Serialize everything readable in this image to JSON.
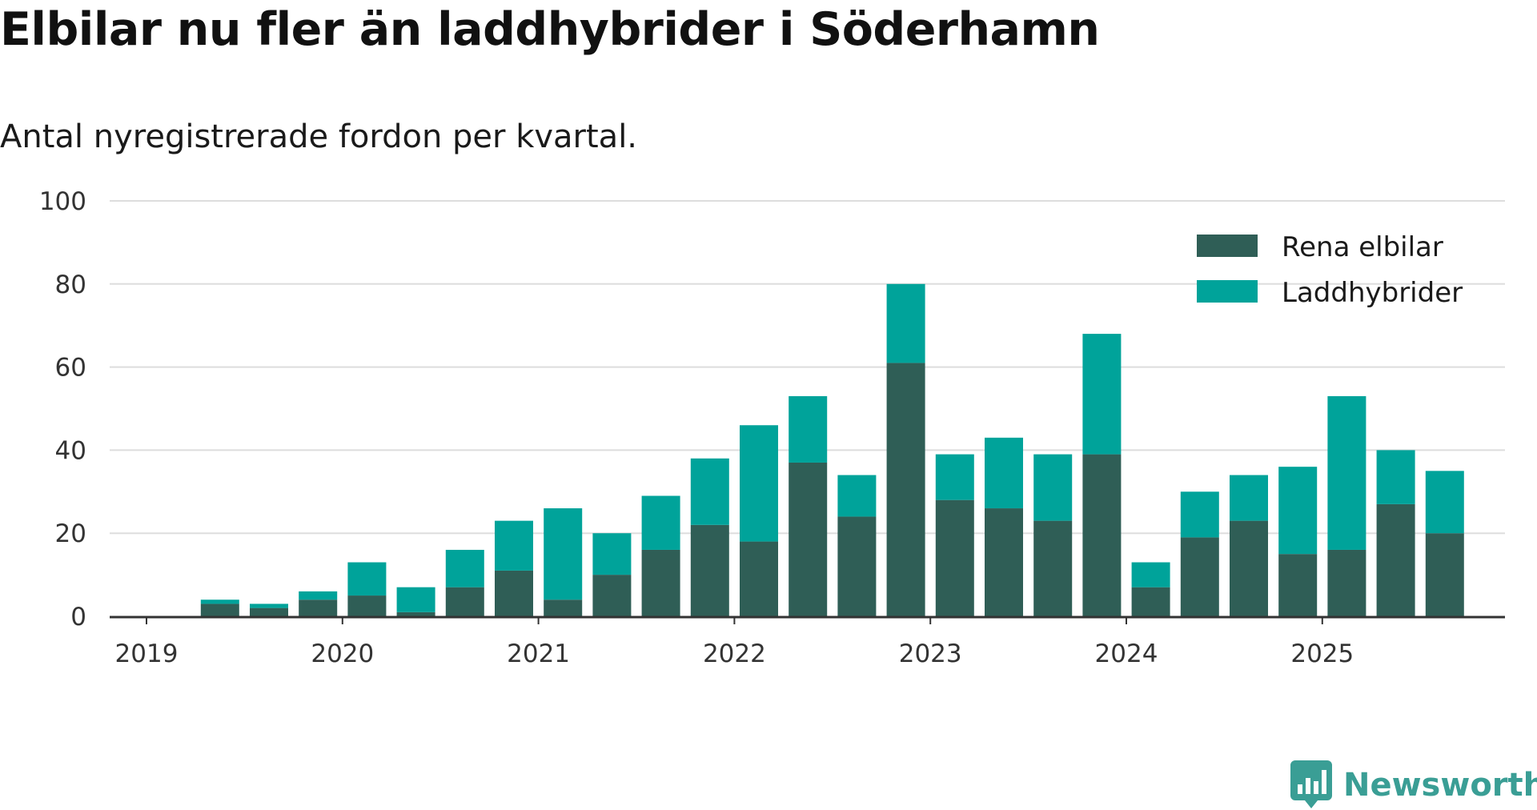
{
  "title": "Elbilar nu fler än laddhybrider i Söderhamn",
  "subtitle": "Antal nyregistrerade fordon per kvartal.",
  "brand": "Newsworthy",
  "colors": {
    "rena": "#2f5e56",
    "ladd": "#00a39a"
  },
  "chart_data": {
    "type": "bar",
    "stacked": true,
    "title": "Elbilar nu fler än laddhybrider i Söderhamn",
    "subtitle": "Antal nyregistrerade fordon per kvartal.",
    "xlabel": "",
    "ylabel": "",
    "ylim": [
      0,
      100
    ],
    "yticks": [
      0,
      20,
      40,
      60,
      80,
      100
    ],
    "xticks": [
      "2019",
      "2020",
      "2021",
      "2022",
      "2023",
      "2024",
      "2025"
    ],
    "grid": true,
    "legend_position": "top-right",
    "categories": [
      "2019 Q1",
      "2019 Q2",
      "2019 Q3",
      "2019 Q4",
      "2020 Q1",
      "2020 Q2",
      "2020 Q3",
      "2020 Q4",
      "2021 Q1",
      "2021 Q2",
      "2021 Q3",
      "2021 Q4",
      "2022 Q1",
      "2022 Q2",
      "2022 Q3",
      "2022 Q4",
      "2023 Q1",
      "2023 Q2",
      "2023 Q3",
      "2023 Q4",
      "2024 Q1",
      "2024 Q2",
      "2024 Q3",
      "2024 Q4",
      "2025 Q1",
      "2025 Q2",
      "2025 Q3"
    ],
    "series": [
      {
        "name": "Rena elbilar",
        "color": "#2f5e56",
        "values": [
          0,
          3,
          2,
          4,
          5,
          1,
          7,
          11,
          4,
          10,
          16,
          22,
          18,
          37,
          24,
          61,
          28,
          26,
          23,
          39,
          7,
          19,
          23,
          15,
          16,
          27,
          20
        ]
      },
      {
        "name": "Laddhybrider",
        "color": "#00a39a",
        "values": [
          0,
          1,
          1,
          2,
          8,
          6,
          9,
          12,
          22,
          10,
          13,
          16,
          28,
          16,
          10,
          19,
          11,
          17,
          16,
          29,
          6,
          11,
          11,
          21,
          37,
          13,
          15
        ]
      }
    ]
  }
}
